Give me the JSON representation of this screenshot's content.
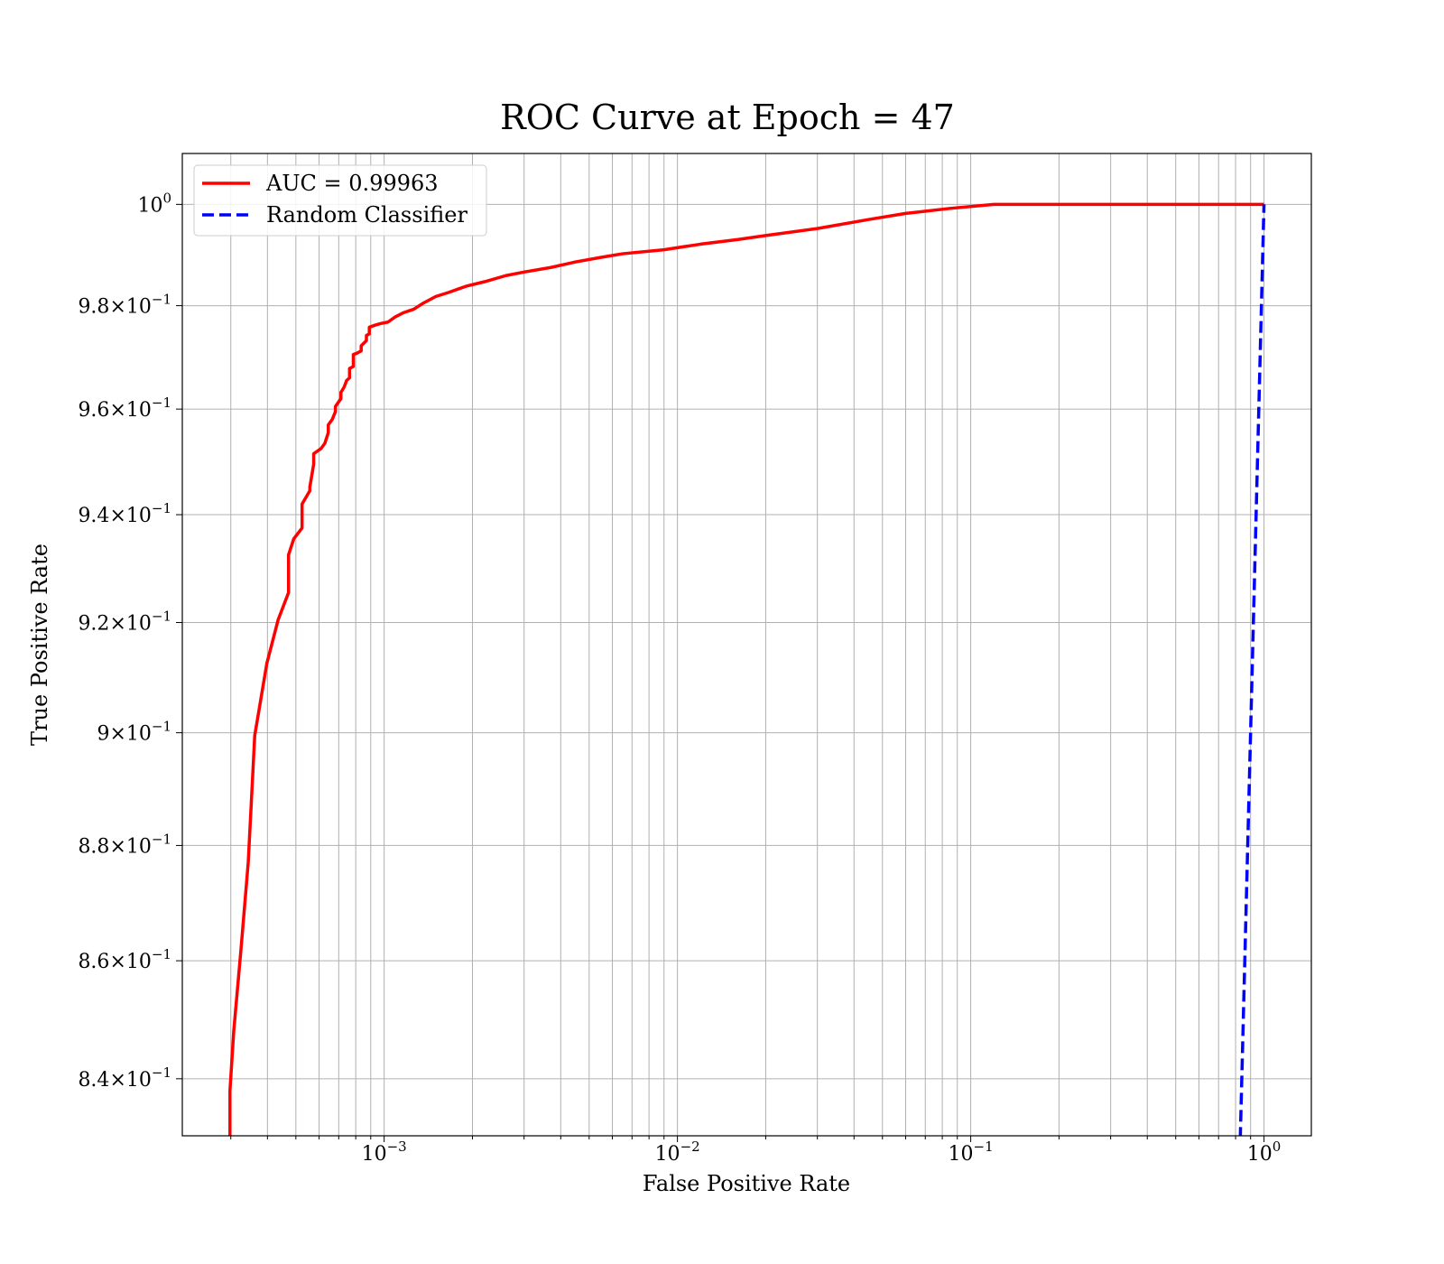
{
  "chart_data": {
    "type": "line",
    "title": "ROC Curve at Epoch = 47",
    "xlabel": "False Positive Rate",
    "ylabel": "True Positive Rate",
    "xscale": "log",
    "yscale": "log",
    "xlim": [
      0.000205,
      1.45
    ],
    "ylim": [
      0.8305,
      1.0102
    ],
    "grid": true,
    "legend_position": "top-left",
    "x_ticks": [
      {
        "value": 0.001,
        "base": "10",
        "exp": "−3"
      },
      {
        "value": 0.01,
        "base": "10",
        "exp": "−2"
      },
      {
        "value": 0.1,
        "base": "10",
        "exp": "−1"
      },
      {
        "value": 1,
        "base": "10",
        "exp": "0"
      }
    ],
    "y_ticks": [
      {
        "value": 1.0,
        "mant": "",
        "base": "10",
        "exp": "0"
      },
      {
        "value": 0.98,
        "mant": "9.8",
        "base": "10",
        "exp": "−1"
      },
      {
        "value": 0.96,
        "mant": "9.6",
        "base": "10",
        "exp": "−1"
      },
      {
        "value": 0.94,
        "mant": "9.4",
        "base": "10",
        "exp": "−1"
      },
      {
        "value": 0.92,
        "mant": "9.2",
        "base": "10",
        "exp": "−1"
      },
      {
        "value": 0.9,
        "mant": "9",
        "base": "10",
        "exp": "−1"
      },
      {
        "value": 0.88,
        "mant": "8.8",
        "base": "10",
        "exp": "−1"
      },
      {
        "value": 0.86,
        "mant": "8.6",
        "base": "10",
        "exp": "−1"
      },
      {
        "value": 0.84,
        "mant": "8.4",
        "base": "10",
        "exp": "−1"
      }
    ],
    "series": [
      {
        "name": "AUC = 0.99963",
        "color": "#ff0000",
        "style": "solid",
        "points": [
          [
            0.000298,
            0.8305
          ],
          [
            0.000298,
            0.838
          ],
          [
            0.000307,
            0.848
          ],
          [
            0.000325,
            0.862
          ],
          [
            0.000344,
            0.877
          ],
          [
            0.000362,
            0.8995
          ],
          [
            0.000398,
            0.9125
          ],
          [
            0.000435,
            0.9205
          ],
          [
            0.000472,
            0.9255
          ],
          [
            0.000472,
            0.9325
          ],
          [
            0.000492,
            0.9355
          ],
          [
            0.000525,
            0.9375
          ],
          [
            0.000525,
            0.942
          ],
          [
            0.000558,
            0.9445
          ],
          [
            0.000558,
            0.9452
          ],
          [
            0.000575,
            0.9495
          ],
          [
            0.000575,
            0.9515
          ],
          [
            0.00061,
            0.9525
          ],
          [
            0.000628,
            0.9535
          ],
          [
            0.000645,
            0.9555
          ],
          [
            0.000645,
            0.957
          ],
          [
            0.000665,
            0.958
          ],
          [
            0.000682,
            0.9595
          ],
          [
            0.000682,
            0.9605
          ],
          [
            0.000712,
            0.962
          ],
          [
            0.000712,
            0.9632
          ],
          [
            0.00073,
            0.9642
          ],
          [
            0.000745,
            0.9655
          ],
          [
            0.000762,
            0.966
          ],
          [
            0.000762,
            0.9678
          ],
          [
            0.000785,
            0.9682
          ],
          [
            0.000785,
            0.9705
          ],
          [
            0.00081,
            0.9708
          ],
          [
            0.000835,
            0.9712
          ],
          [
            0.000835,
            0.9722
          ],
          [
            0.00087,
            0.9732
          ],
          [
            0.00087,
            0.9742
          ],
          [
            0.00089,
            0.9745
          ],
          [
            0.00089,
            0.9758
          ],
          [
            0.00093,
            0.9762
          ],
          [
            0.00097,
            0.9765
          ],
          [
            0.00103,
            0.9768
          ],
          [
            0.00109,
            0.9778
          ],
          [
            0.00116,
            0.9786
          ],
          [
            0.00126,
            0.9793
          ],
          [
            0.00136,
            0.9805
          ],
          [
            0.0015,
            0.9818
          ],
          [
            0.00166,
            0.9826
          ],
          [
            0.0019,
            0.9838
          ],
          [
            0.0022,
            0.9847
          ],
          [
            0.0026,
            0.9859
          ],
          [
            0.003,
            0.9866
          ],
          [
            0.0037,
            0.9875
          ],
          [
            0.0045,
            0.9886
          ],
          [
            0.0055,
            0.9895
          ],
          [
            0.0065,
            0.9902
          ],
          [
            0.009,
            0.991
          ],
          [
            0.012,
            0.9921
          ],
          [
            0.016,
            0.993
          ],
          [
            0.02,
            0.9938
          ],
          [
            0.03,
            0.9952
          ],
          [
            0.045,
            0.997
          ],
          [
            0.06,
            0.9982
          ],
          [
            0.085,
            0.9992
          ],
          [
            0.12,
            1.0
          ],
          [
            0.3,
            1.0
          ],
          [
            1.0,
            1.0
          ]
        ]
      },
      {
        "name": "Random Classifier",
        "color": "#0000ff",
        "style": "dashed",
        "points": [
          [
            0.83,
            0.83
          ],
          [
            1.0,
            1.0
          ]
        ]
      }
    ]
  }
}
